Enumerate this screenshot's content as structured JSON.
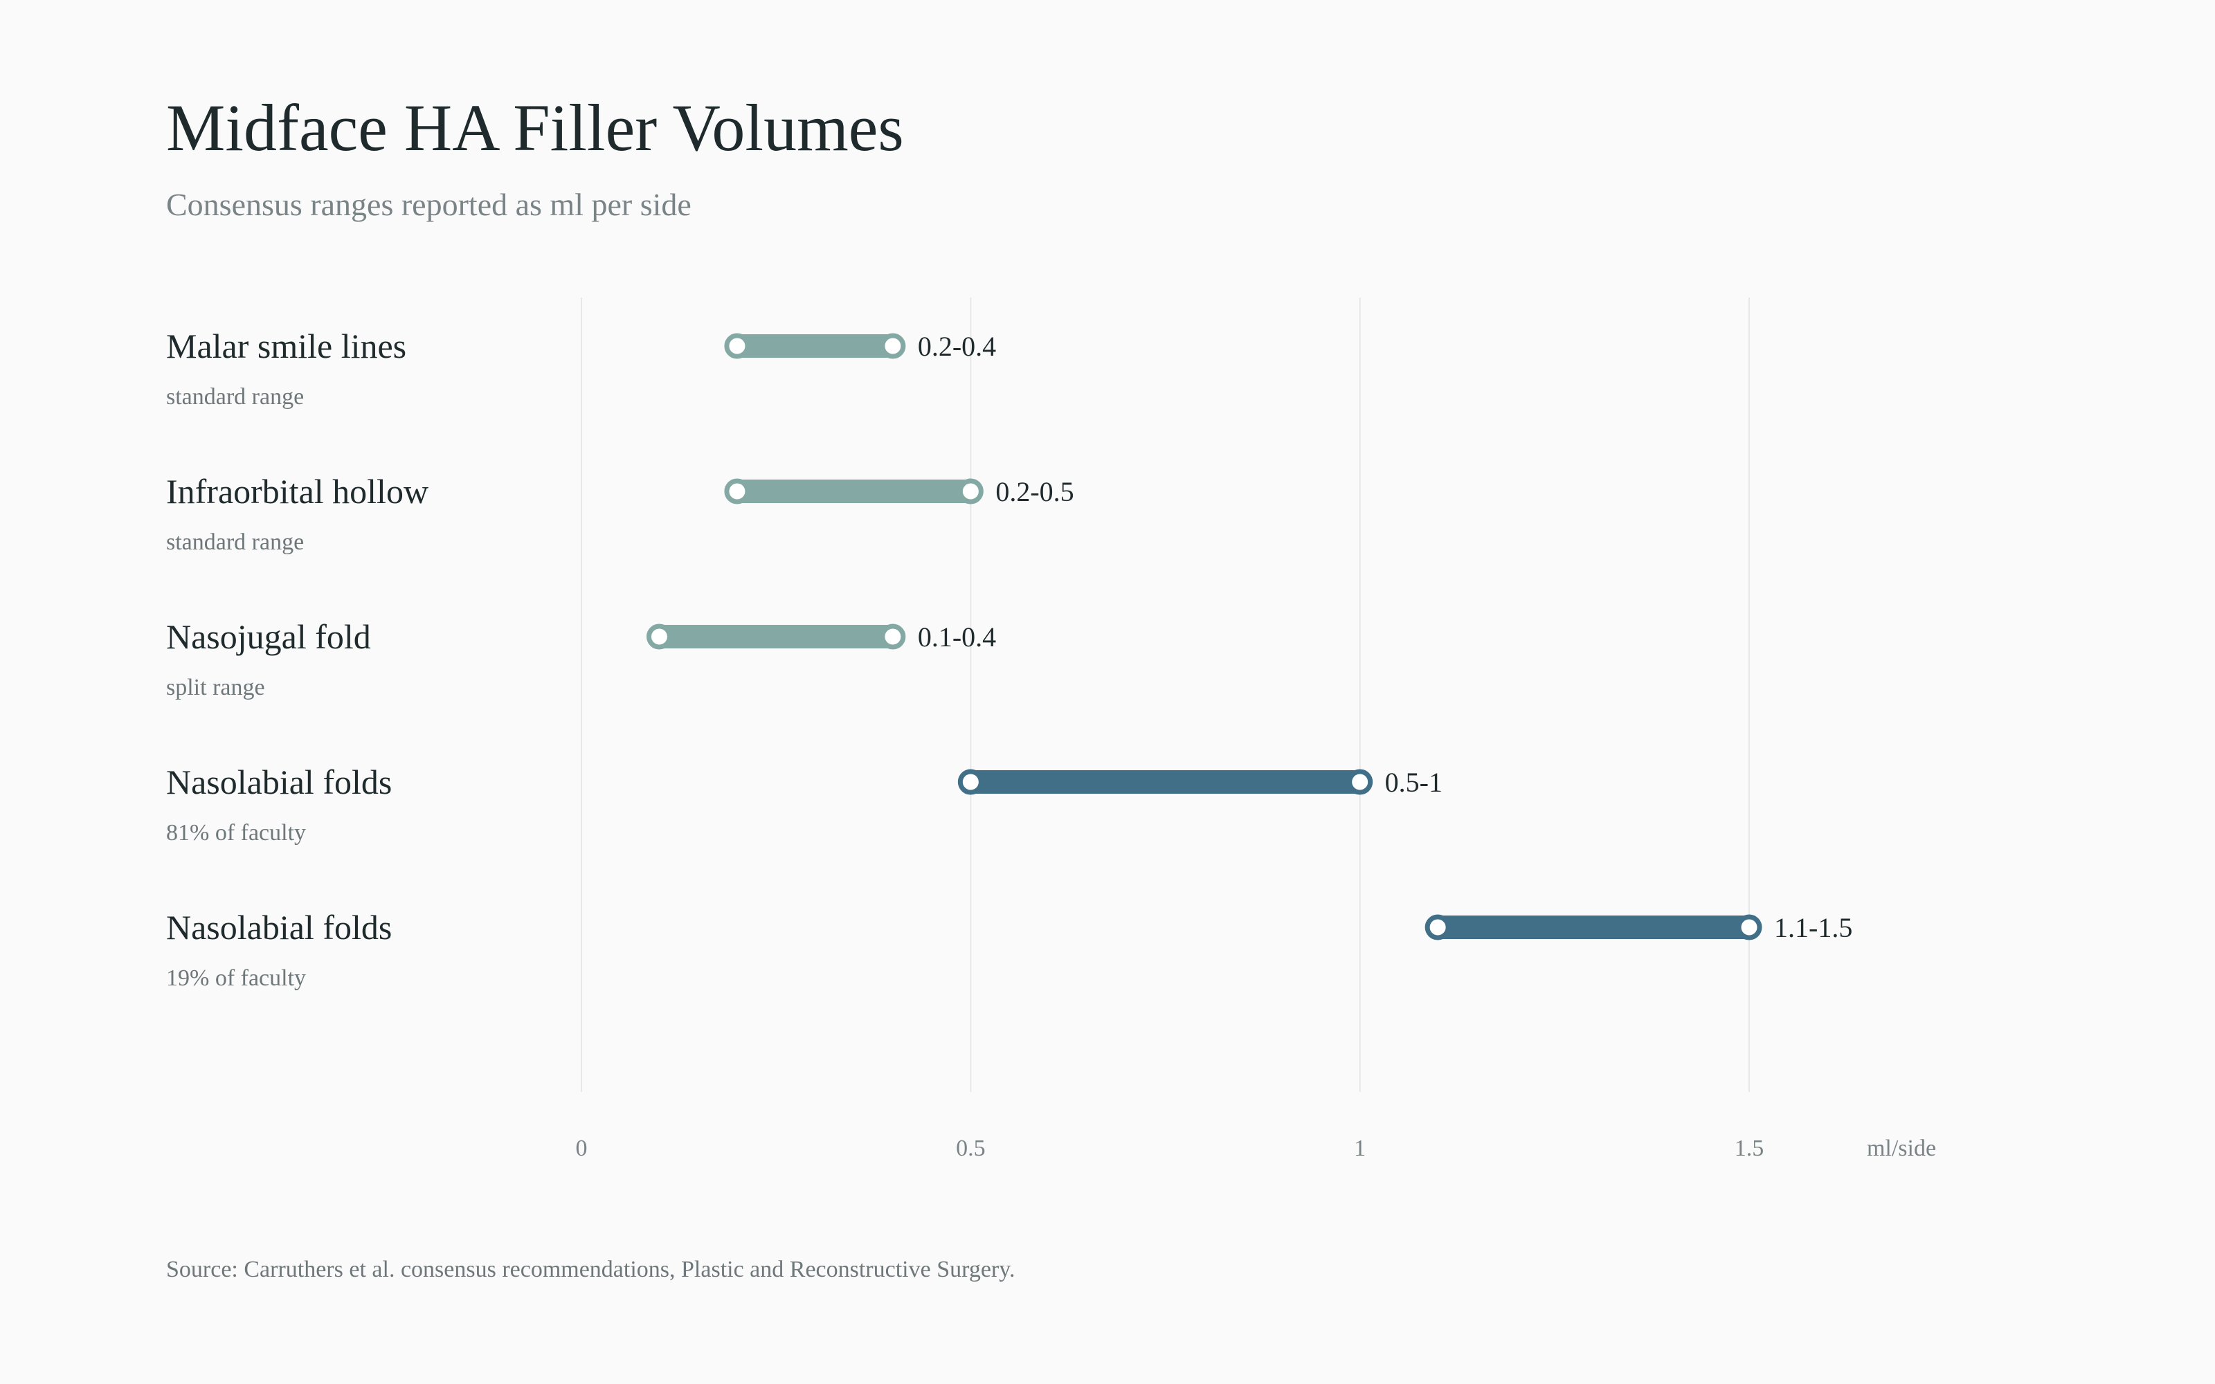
{
  "header": {
    "title": "Midface HA Filler Volumes",
    "subtitle": "Consensus ranges reported as ml per side"
  },
  "footer": {
    "source": "Source: Carruthers et al. consensus recommendations, Plastic and Reconstructive Surgery."
  },
  "colors": {
    "standard": "#84a8a3",
    "faculty": "#416f87",
    "grid": "#e6e8e8"
  },
  "chart_data": {
    "type": "range",
    "title": "Midface HA Filler Volumes",
    "subtitle": "Consensus ranges reported as ml per side",
    "xlabel": "ml/side",
    "xlim": [
      0,
      1.5
    ],
    "xticks": [
      {
        "value": 0,
        "label": "0"
      },
      {
        "value": 0.5,
        "label": "0.5"
      },
      {
        "value": 1,
        "label": "1"
      },
      {
        "value": 1.5,
        "label": "1.5"
      }
    ],
    "grid": true,
    "rows": [
      {
        "label": "Malar smile lines",
        "note": "standard range",
        "min": 0.2,
        "max": 0.4,
        "value_label": "0.2-0.4",
        "group": "standard"
      },
      {
        "label": "Infraorbital hollow",
        "note": "standard range",
        "min": 0.2,
        "max": 0.5,
        "value_label": "0.2-0.5",
        "group": "standard"
      },
      {
        "label": "Nasojugal fold",
        "note": "split range",
        "min": 0.1,
        "max": 0.4,
        "value_label": "0.1-0.4",
        "group": "standard"
      },
      {
        "label": "Nasolabial folds",
        "note": "81% of faculty",
        "min": 0.5,
        "max": 1,
        "value_label": "0.5-1",
        "group": "faculty"
      },
      {
        "label": "Nasolabial folds",
        "note": "19% of faculty",
        "min": 1.1,
        "max": 1.5,
        "value_label": "1.1-1.5",
        "group": "faculty"
      }
    ]
  }
}
